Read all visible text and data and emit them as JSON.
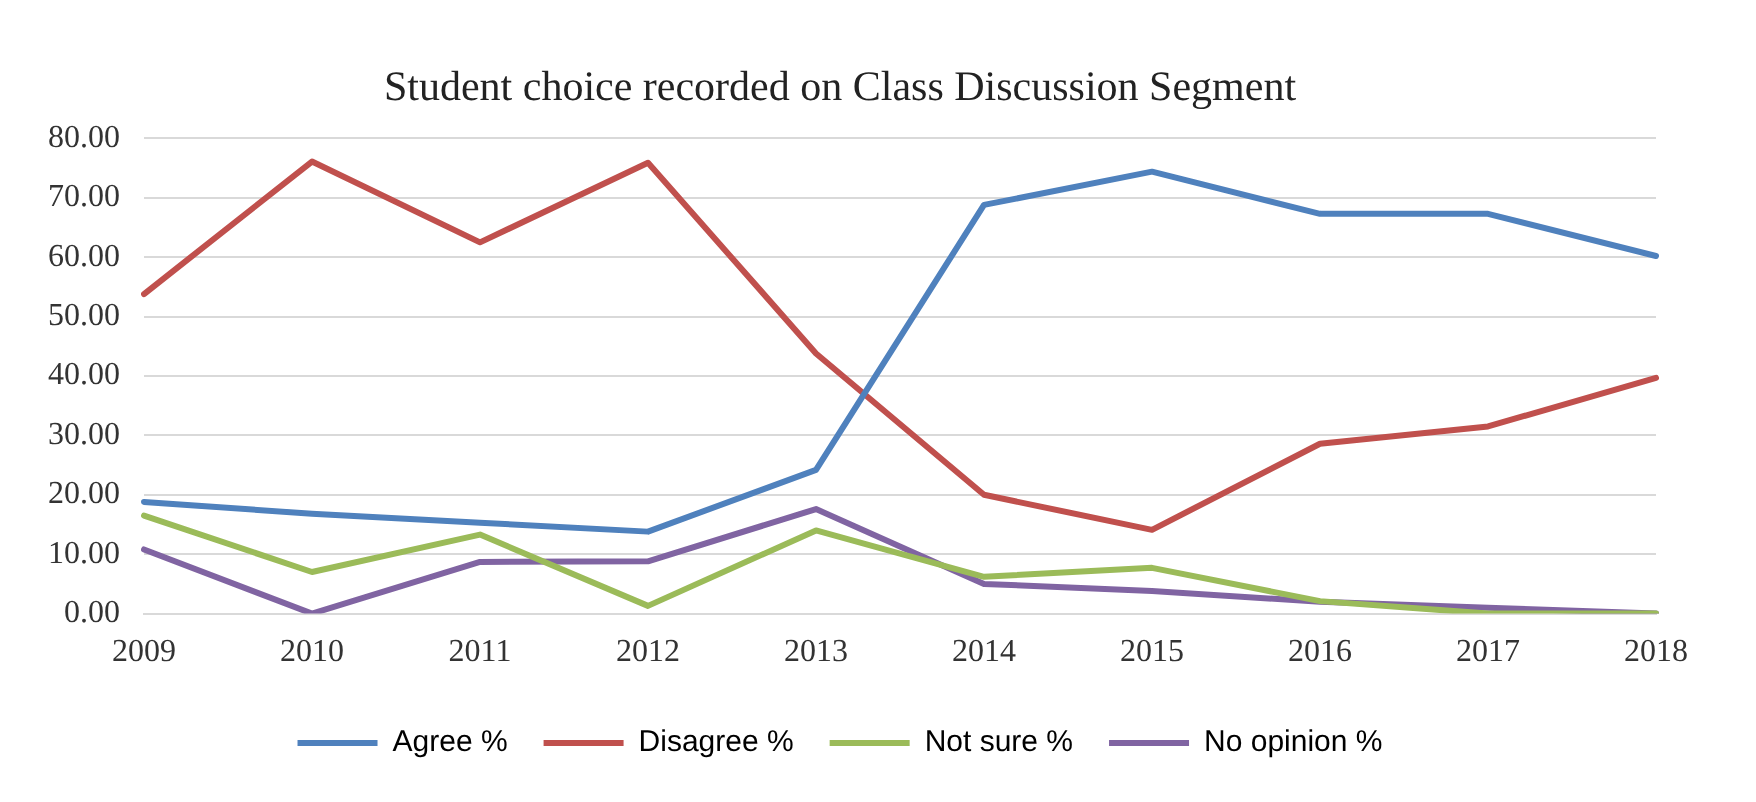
{
  "chart_data": {
    "type": "line",
    "title": "Student choice recorded on Class Discussion Segment",
    "categories": [
      "2009",
      "2010",
      "2011",
      "2012",
      "2013",
      "2014",
      "2015",
      "2016",
      "2017",
      "2018"
    ],
    "series": [
      {
        "name": "Agree %",
        "color": "#4f81bd",
        "values": [
          18.8,
          16.8,
          15.3,
          13.8,
          24.2,
          68.8,
          74.4,
          67.3,
          67.3,
          60.2
        ]
      },
      {
        "name": "Disagree %",
        "color": "#c0504d",
        "values": [
          53.8,
          76.1,
          62.5,
          75.9,
          43.8,
          20.0,
          14.1,
          28.6,
          31.5,
          39.7
        ]
      },
      {
        "name": "Not sure %",
        "color": "#9bbb59",
        "values": [
          16.5,
          7.0,
          13.3,
          1.3,
          14.0,
          6.2,
          7.7,
          2.1,
          0,
          0
        ]
      },
      {
        "name": "No opinion %",
        "color": "#8064a2",
        "values": [
          10.8,
          0,
          8.7,
          8.8,
          17.6,
          5.0,
          3.8,
          2.0,
          1.0,
          0
        ]
      }
    ],
    "ylim": [
      0,
      80
    ],
    "yticks": [
      {
        "value": 0,
        "label": "0.00"
      },
      {
        "value": 10,
        "label": "10.00"
      },
      {
        "value": 20,
        "label": "20.00"
      },
      {
        "value": 30,
        "label": "30.00"
      },
      {
        "value": 40,
        "label": "40.00"
      },
      {
        "value": 50,
        "label": "50.00"
      },
      {
        "value": 60,
        "label": "60.00"
      },
      {
        "value": 70,
        "label": "70.00"
      },
      {
        "value": 80,
        "label": "80.00"
      }
    ],
    "grid": "y",
    "legend": "bottom",
    "marker": "none",
    "line_style": "solid"
  }
}
